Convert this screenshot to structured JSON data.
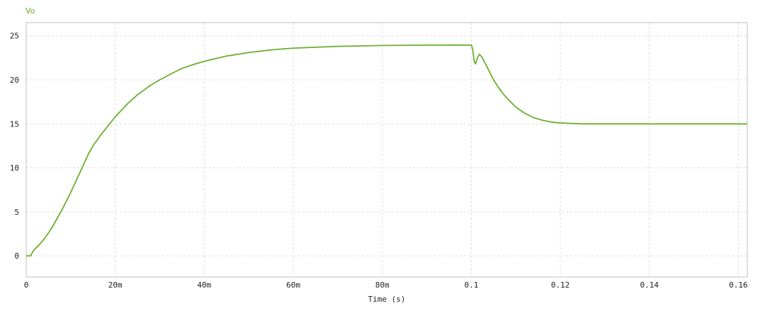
{
  "chart_data": {
    "type": "line",
    "title": "",
    "xlabel": "Time (s)",
    "ylabel": "",
    "xlim": [
      0,
      0.162
    ],
    "ylim": [
      -2.4,
      26.5
    ],
    "grid": true,
    "x_ticks": [
      {
        "value": 0,
        "label": "0"
      },
      {
        "value": 0.02,
        "label": "20m"
      },
      {
        "value": 0.04,
        "label": "40m"
      },
      {
        "value": 0.06,
        "label": "60m"
      },
      {
        "value": 0.08,
        "label": "80m"
      },
      {
        "value": 0.1,
        "label": "0.1"
      },
      {
        "value": 0.12,
        "label": "0.12"
      },
      {
        "value": 0.14,
        "label": "0.14"
      },
      {
        "value": 0.16,
        "label": "0.16"
      }
    ],
    "y_ticks": [
      {
        "value": 0,
        "label": "0"
      },
      {
        "value": 5,
        "label": "5"
      },
      {
        "value": 10,
        "label": "10"
      },
      {
        "value": 15,
        "label": "15"
      },
      {
        "value": 20,
        "label": "20"
      },
      {
        "value": 25,
        "label": "25"
      }
    ],
    "series": [
      {
        "name": "Vo",
        "color": "#6aae2d",
        "x": [
          0,
          0.001,
          0.0015,
          0.002,
          0.003,
          0.004,
          0.005,
          0.006,
          0.007,
          0.008,
          0.009,
          0.01,
          0.011,
          0.012,
          0.013,
          0.014,
          0.015,
          0.017,
          0.02,
          0.023,
          0.025,
          0.028,
          0.03,
          0.033,
          0.035,
          0.038,
          0.04,
          0.045,
          0.05,
          0.055,
          0.06,
          0.065,
          0.07,
          0.075,
          0.08,
          0.085,
          0.09,
          0.095,
          0.1,
          0.1003,
          0.1006,
          0.1009,
          0.1012,
          0.1015,
          0.1018,
          0.102,
          0.1025,
          0.103,
          0.104,
          0.105,
          0.106,
          0.107,
          0.108,
          0.109,
          0.11,
          0.112,
          0.114,
          0.116,
          0.118,
          0.12,
          0.122,
          0.125,
          0.128,
          0.13,
          0.135,
          0.14,
          0.145,
          0.15,
          0.155,
          0.16,
          0.162
        ],
        "y": [
          0,
          0,
          0.5,
          0.8,
          1.3,
          1.9,
          2.6,
          3.4,
          4.3,
          5.2,
          6.2,
          7.2,
          8.3,
          9.4,
          10.5,
          11.6,
          12.5,
          13.9,
          15.8,
          17.4,
          18.3,
          19.4,
          20.0,
          20.8,
          21.3,
          21.8,
          22.1,
          22.7,
          23.1,
          23.4,
          23.6,
          23.7,
          23.8,
          23.85,
          23.9,
          23.92,
          23.94,
          23.95,
          23.95,
          23.5,
          22.2,
          21.8,
          22.2,
          22.6,
          22.9,
          22.8,
          22.5,
          22.0,
          21.0,
          20.0,
          19.2,
          18.5,
          17.9,
          17.4,
          16.9,
          16.2,
          15.7,
          15.4,
          15.2,
          15.1,
          15.05,
          15.0,
          15.0,
          15.0,
          15.0,
          15.0,
          15.0,
          15.0,
          15.0,
          15.0,
          15.0
        ]
      }
    ]
  }
}
